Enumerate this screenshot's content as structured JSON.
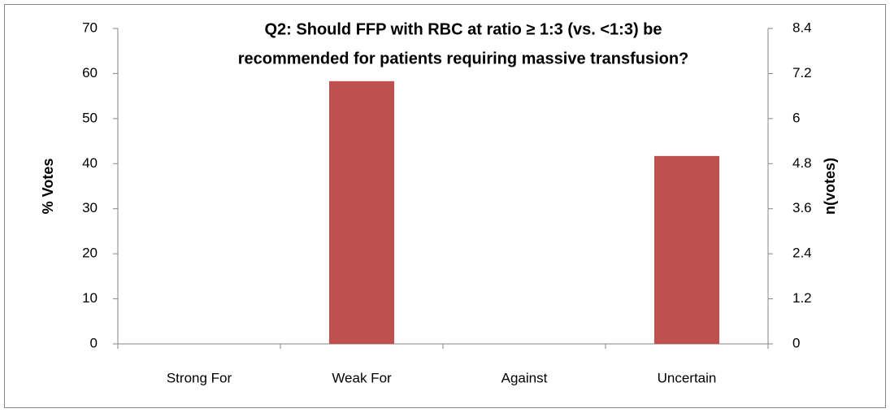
{
  "chart_data": {
    "type": "bar",
    "title": [
      "Q2: Should FFP with RBC at ratio ≥ 1:3 (vs. <1:3) be",
      "recommended for patients requiring massive transfusion?"
    ],
    "categories": [
      "Strong For",
      "Weak For",
      "Against",
      "Uncertain"
    ],
    "values": [
      0,
      58.3,
      0,
      41.7
    ],
    "color": "#c0504d",
    "ylabel": "% Votes",
    "y2label": "n(votes)",
    "ylim": [
      0,
      70
    ],
    "yticks": [
      0,
      10,
      20,
      30,
      40,
      50,
      60,
      70
    ],
    "y2lim": [
      0,
      8.4
    ],
    "y2ticks": [
      0,
      1.2,
      2.4,
      3.6,
      4.8,
      6,
      7.2,
      8.4
    ],
    "grid": false
  }
}
